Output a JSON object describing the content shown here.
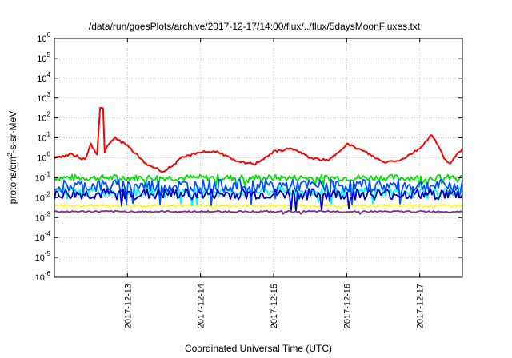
{
  "chart_data": {
    "type": "line",
    "title": "/data/run/goesPlots/archive/2017-12-17/14:00/flux/../flux/5daysMoonFluxes.txt",
    "xlabel": "Coordinated Universal Time (UTC)",
    "ylabel": "protons/cm2-s-sr-MeV",
    "yscale": "log",
    "ylim": [
      1e-06,
      1000000.0
    ],
    "y_ticks": [
      {
        "exp": "6",
        "value": 1000000.0
      },
      {
        "exp": "5",
        "value": 100000.0
      },
      {
        "exp": "4",
        "value": 10000.0
      },
      {
        "exp": "3",
        "value": 1000.0
      },
      {
        "exp": "2",
        "value": 100.0
      },
      {
        "exp": "1",
        "value": 10.0
      },
      {
        "exp": "0",
        "value": 1.0
      },
      {
        "exp": "-1",
        "value": 0.1
      },
      {
        "exp": "-2",
        "value": 0.01
      },
      {
        "exp": "-3",
        "value": 0.001
      },
      {
        "exp": "-4",
        "value": 0.0001
      },
      {
        "exp": "-5",
        "value": 1e-05
      },
      {
        "exp": "-6",
        "value": 1e-06
      }
    ],
    "xlim": [
      "2017-12-12 00:00",
      "2017-12-17 14:00"
    ],
    "x_ticks": [
      "2017-12-13",
      "2017-12-14",
      "2017-12-15",
      "2017-12-16",
      "2017-12-17"
    ],
    "grid": true,
    "series": [
      {
        "color": "#ff0000",
        "x": [
          "2017-12-12 00:00",
          "2017-12-12 06:00",
          "2017-12-12 10:00",
          "2017-12-12 12:00",
          "2017-12-12 14:00",
          "2017-12-12 15:00",
          "2017-12-12 16:00",
          "2017-12-12 16:30",
          "2017-12-12 18:00",
          "2017-12-12 20:00",
          "2017-12-13 00:00",
          "2017-12-13 06:00",
          "2017-12-13 12:00",
          "2017-12-13 18:00",
          "2017-12-14 00:00",
          "2017-12-14 06:00",
          "2017-12-14 12:00",
          "2017-12-14 18:00",
          "2017-12-15 00:00",
          "2017-12-15 06:00",
          "2017-12-15 12:00",
          "2017-12-15 18:00",
          "2017-12-16 00:00",
          "2017-12-16 06:00",
          "2017-12-16 12:00",
          "2017-12-16 18:00",
          "2017-12-17 00:00",
          "2017-12-17 04:00",
          "2017-12-17 08:00",
          "2017-12-17 10:00",
          "2017-12-17 14:00"
        ],
        "values": [
          1.0,
          1.5,
          0.8,
          5.0,
          1.5,
          300,
          300,
          2.0,
          5.0,
          10.0,
          4.0,
          0.5,
          0.2,
          1.0,
          2.0,
          2.0,
          0.6,
          0.5,
          2.0,
          3.0,
          1.0,
          0.7,
          5.0,
          2.0,
          0.6,
          0.8,
          3.0,
          15.0,
          1.0,
          0.5,
          3.0
        ]
      },
      {
        "color": "#00e000",
        "x": [
          "2017-12-12 00:00",
          "2017-12-17 14:00"
        ],
        "values": [
          0.1,
          0.1
        ]
      },
      {
        "color": "#00ffff",
        "x": [
          "2017-12-12 00:00",
          "2017-12-17 14:00"
        ],
        "values": [
          0.02,
          0.02
        ]
      },
      {
        "color": "#0050ff",
        "x": [
          "2017-12-12 00:00",
          "2017-12-17 14:00"
        ],
        "values": [
          0.04,
          0.04
        ]
      },
      {
        "color": "#0000cc",
        "x": [
          "2017-12-12 00:00",
          "2017-12-17 14:00"
        ],
        "values": [
          0.015,
          0.015
        ]
      },
      {
        "color": "#ffff00",
        "x": [
          "2017-12-12 00:00",
          "2017-12-17 14:00"
        ],
        "values": [
          0.004,
          0.004
        ]
      },
      {
        "color": "#803080",
        "x": [
          "2017-12-12 00:00",
          "2017-12-17 14:00"
        ],
        "values": [
          0.002,
          0.002
        ]
      }
    ]
  }
}
